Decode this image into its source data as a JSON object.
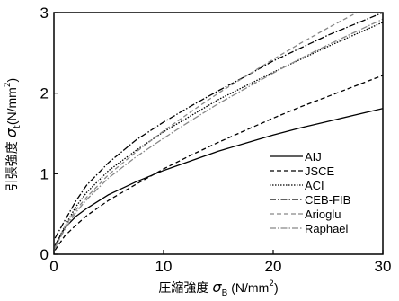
{
  "chart_data": {
    "type": "line",
    "xlabel": "圧縮強度σB (N/mm2)",
    "ylabel": "引張強度σt (N/mm2)",
    "xlabel_parts": {
      "main": "圧縮強度",
      "sym": "σ",
      "sub": "B",
      "unit": " (N/mm",
      "sup": "2",
      "close": ")"
    },
    "ylabel_parts": {
      "main": "引張強度",
      "sym": "σ",
      "sub": "t",
      "unit": "(N/mm",
      "sup": "2",
      "close": ")"
    },
    "xlim": [
      0,
      30
    ],
    "ylim": [
      0,
      3
    ],
    "xticks": [
      0,
      10,
      20,
      30
    ],
    "yticks": [
      0,
      1,
      2,
      3
    ],
    "xtick_labels": [
      "0",
      "10",
      "20",
      "30"
    ],
    "ytick_labels": [
      "0",
      "1",
      "2",
      "3"
    ],
    "grid": false,
    "legend_position": "bottom-right",
    "x": [
      0.1,
      1,
      2,
      3,
      5,
      7.5,
      10,
      12.5,
      15,
      17.5,
      20,
      22.5,
      25,
      27.5,
      30
    ],
    "series": [
      {
        "name": "AIJ",
        "color": "#000000",
        "dash": "solid",
        "values": [
          0.11,
          0.33,
          0.47,
          0.57,
          0.74,
          0.9,
          1.04,
          1.16,
          1.28,
          1.38,
          1.48,
          1.57,
          1.65,
          1.73,
          1.81
        ]
      },
      {
        "name": "JSCE",
        "color": "#000000",
        "dash": "dashed",
        "values": [
          0.05,
          0.23,
          0.36,
          0.48,
          0.67,
          0.87,
          1.06,
          1.23,
          1.39,
          1.54,
          1.69,
          1.83,
          1.96,
          2.09,
          2.22
        ]
      },
      {
        "name": "ACI",
        "color": "#000000",
        "dash": "dotted",
        "values": [
          0.1,
          0.35,
          0.59,
          0.77,
          1.04,
          1.29,
          1.52,
          1.72,
          1.92,
          2.09,
          2.26,
          2.42,
          2.58,
          2.73,
          2.88
        ]
      },
      {
        "name": "CEB-FIB",
        "color": "#000000",
        "dash": "dashdot",
        "values": [
          0.2,
          0.42,
          0.66,
          0.86,
          1.14,
          1.42,
          1.64,
          1.84,
          2.03,
          2.21,
          2.4,
          2.56,
          2.72,
          2.86,
          3.0
        ]
      },
      {
        "name": "Arioglu",
        "color": "#888888",
        "dash": "dashed",
        "values": [
          0.07,
          0.34,
          0.55,
          0.71,
          0.99,
          1.27,
          1.53,
          1.77,
          2.0,
          2.21,
          2.42,
          2.62,
          2.81,
          2.99,
          3.17
        ]
      },
      {
        "name": "Raphael",
        "color": "#888888",
        "dash": "dashdot",
        "values": [
          0.09,
          0.31,
          0.52,
          0.68,
          0.95,
          1.21,
          1.44,
          1.66,
          1.87,
          2.06,
          2.25,
          2.43,
          2.6,
          2.76,
          2.92
        ]
      }
    ]
  }
}
